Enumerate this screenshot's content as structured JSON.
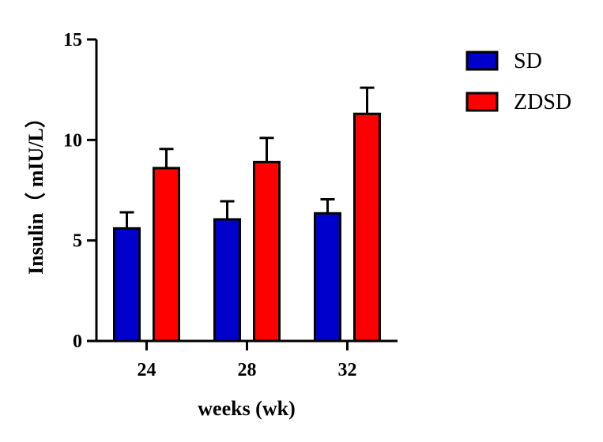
{
  "chart_data": {
    "type": "bar",
    "title": "",
    "xlabel": "weeks (wk)",
    "ylabel": "Insulin（ mIU/L）",
    "categories": [
      "24",
      "28",
      "32"
    ],
    "ylim": [
      0,
      15
    ],
    "yticks": [
      0,
      5,
      10,
      15
    ],
    "legend_position": "top-right",
    "error_bars": "upper only",
    "series": [
      {
        "name": "SD",
        "color": "#0000cc",
        "values": [
          5.6,
          6.05,
          6.35
        ],
        "errors": [
          0.8,
          0.9,
          0.7
        ]
      },
      {
        "name": "ZDSD",
        "color": "#ff0000",
        "values": [
          8.6,
          8.9,
          11.3
        ],
        "errors": [
          0.95,
          1.2,
          1.3
        ]
      }
    ]
  }
}
